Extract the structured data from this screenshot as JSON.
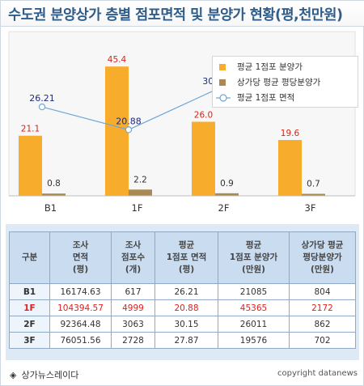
{
  "title": "수도권 분양상가 층별 점포면적 및 분양가 현황(평,천만원)",
  "legend": {
    "items": [
      {
        "label": "평균 1점포 분양가",
        "color": "#f7ac2b",
        "kind": "bar"
      },
      {
        "label": "상가당 평균 평당분양가",
        "color": "#a98a55",
        "kind": "bar"
      },
      {
        "label": "평균 1점포 면적",
        "color": "#6fa6d8",
        "kind": "line"
      }
    ]
  },
  "chart_data": {
    "type": "bar",
    "categories": [
      "B1",
      "1F",
      "2F",
      "3F"
    ],
    "series": [
      {
        "name": "평균 1점포 분양가",
        "kind": "bar",
        "color": "#f7ac2b",
        "values": [
          21.1,
          45.4,
          26.0,
          19.6
        ],
        "labels": [
          "21.1",
          "45.4",
          "26.0",
          "19.6"
        ]
      },
      {
        "name": "상가당 평균 평당분양가",
        "kind": "bar",
        "color": "#a98a55",
        "values": [
          0.8,
          2.2,
          0.9,
          0.7
        ],
        "labels": [
          "0.8",
          "2.2",
          "0.9",
          "0.7"
        ]
      },
      {
        "name": "평균 1점포 면적",
        "kind": "line",
        "color": "#6fa6d8",
        "values": [
          26.21,
          20.88,
          30.15,
          27.87
        ],
        "labels": [
          "26.21",
          "20.88",
          "30.15",
          "27.87"
        ]
      }
    ],
    "bar_label_color": "#d0281e",
    "line_label_color": "#1e2a7a",
    "small_label_color": "#333333",
    "ylim": [
      0,
      50
    ],
    "grid": false,
    "legend_position": "top-right"
  },
  "table": {
    "headers": [
      [
        "구분"
      ],
      [
        "조사",
        "면적",
        "(평)"
      ],
      [
        "조사",
        "점포수",
        "(개)"
      ],
      [
        "평균",
        "1점포 면적",
        "(평)"
      ],
      [
        "평균",
        "1점포 분양가",
        "(만원)"
      ],
      [
        "상가당 평균",
        "평당분양가",
        "(만원)"
      ]
    ],
    "rows": [
      {
        "label": "B1",
        "cells": [
          "16174.63",
          "617",
          "26.21",
          "21085",
          "804"
        ],
        "highlight": false
      },
      {
        "label": "1F",
        "cells": [
          "104394.57",
          "4999",
          "20.88",
          "45365",
          "2172"
        ],
        "highlight": true
      },
      {
        "label": "2F",
        "cells": [
          "92364.48",
          "3063",
          "30.15",
          "26011",
          "862"
        ],
        "highlight": false
      },
      {
        "label": "3F",
        "cells": [
          "76051.56",
          "2728",
          "27.87",
          "19576",
          "702"
        ],
        "highlight": false
      }
    ]
  },
  "footer": {
    "source": "상가뉴스레이다",
    "copyright": "copyright datanews"
  }
}
